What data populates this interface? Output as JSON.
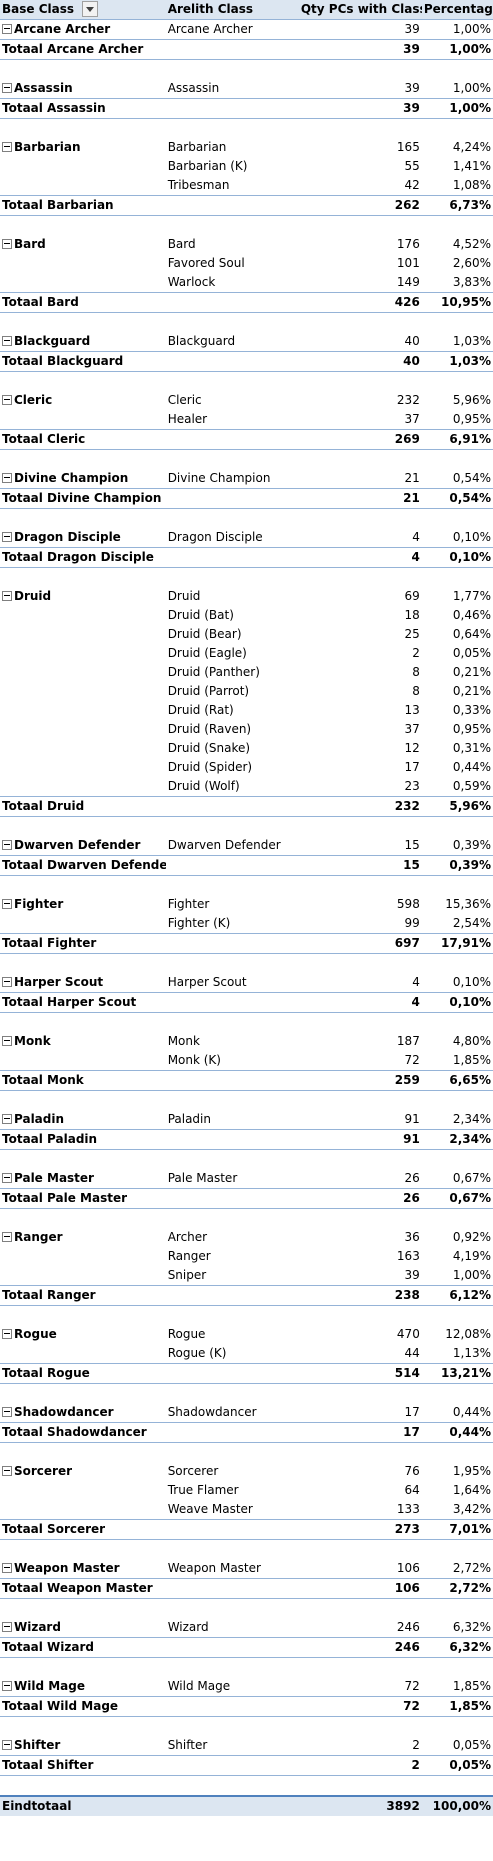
{
  "headers": {
    "base_class": "Base Class",
    "arelith_class": "Arelith Class",
    "qty": "Qty PCs with Class",
    "percentage": "Percentage"
  },
  "groups": [
    {
      "name": "Arcane Archer",
      "total_label": "Totaal Arcane Archer",
      "total_qty": "39",
      "total_pct": "1,00%",
      "rows": [
        {
          "cls": "Arcane Archer",
          "qty": "39",
          "pct": "1,00%"
        }
      ]
    },
    {
      "name": "Assassin",
      "total_label": "Totaal Assassin",
      "total_qty": "39",
      "total_pct": "1,00%",
      "rows": [
        {
          "cls": "Assassin",
          "qty": "39",
          "pct": "1,00%"
        }
      ]
    },
    {
      "name": "Barbarian",
      "total_label": "Totaal Barbarian",
      "total_qty": "262",
      "total_pct": "6,73%",
      "rows": [
        {
          "cls": "Barbarian",
          "qty": "165",
          "pct": "4,24%"
        },
        {
          "cls": "Barbarian (K)",
          "qty": "55",
          "pct": "1,41%"
        },
        {
          "cls": "Tribesman",
          "qty": "42",
          "pct": "1,08%"
        }
      ]
    },
    {
      "name": "Bard",
      "total_label": "Totaal Bard",
      "total_qty": "426",
      "total_pct": "10,95%",
      "rows": [
        {
          "cls": "Bard",
          "qty": "176",
          "pct": "4,52%"
        },
        {
          "cls": "Favored Soul",
          "qty": "101",
          "pct": "2,60%"
        },
        {
          "cls": "Warlock",
          "qty": "149",
          "pct": "3,83%"
        }
      ]
    },
    {
      "name": "Blackguard",
      "total_label": "Totaal Blackguard",
      "total_qty": "40",
      "total_pct": "1,03%",
      "rows": [
        {
          "cls": "Blackguard",
          "qty": "40",
          "pct": "1,03%"
        }
      ]
    },
    {
      "name": "Cleric",
      "total_label": "Totaal Cleric",
      "total_qty": "269",
      "total_pct": "6,91%",
      "rows": [
        {
          "cls": "Cleric",
          "qty": "232",
          "pct": "5,96%"
        },
        {
          "cls": "Healer",
          "qty": "37",
          "pct": "0,95%"
        }
      ]
    },
    {
      "name": "Divine Champion",
      "total_label": "Totaal Divine Champion",
      "total_qty": "21",
      "total_pct": "0,54%",
      "rows": [
        {
          "cls": "Divine Champion",
          "qty": "21",
          "pct": "0,54%"
        }
      ]
    },
    {
      "name": "Dragon Disciple",
      "total_label": "Totaal Dragon Disciple",
      "total_qty": "4",
      "total_pct": "0,10%",
      "rows": [
        {
          "cls": "Dragon Disciple",
          "qty": "4",
          "pct": "0,10%"
        }
      ]
    },
    {
      "name": "Druid",
      "total_label": "Totaal Druid",
      "total_qty": "232",
      "total_pct": "5,96%",
      "rows": [
        {
          "cls": "Druid",
          "qty": "69",
          "pct": "1,77%"
        },
        {
          "cls": "Druid (Bat)",
          "qty": "18",
          "pct": "0,46%"
        },
        {
          "cls": "Druid (Bear)",
          "qty": "25",
          "pct": "0,64%"
        },
        {
          "cls": "Druid (Eagle)",
          "qty": "2",
          "pct": "0,05%"
        },
        {
          "cls": "Druid (Panther)",
          "qty": "8",
          "pct": "0,21%"
        },
        {
          "cls": "Druid (Parrot)",
          "qty": "8",
          "pct": "0,21%"
        },
        {
          "cls": "Druid (Rat)",
          "qty": "13",
          "pct": "0,33%"
        },
        {
          "cls": "Druid (Raven)",
          "qty": "37",
          "pct": "0,95%"
        },
        {
          "cls": "Druid (Snake)",
          "qty": "12",
          "pct": "0,31%"
        },
        {
          "cls": "Druid (Spider)",
          "qty": "17",
          "pct": "0,44%"
        },
        {
          "cls": "Druid (Wolf)",
          "qty": "23",
          "pct": "0,59%"
        }
      ]
    },
    {
      "name": "Dwarven Defender",
      "total_label": "Totaal Dwarven Defender",
      "total_qty": "15",
      "total_pct": "0,39%",
      "rows": [
        {
          "cls": "Dwarven Defender",
          "qty": "15",
          "pct": "0,39%"
        }
      ]
    },
    {
      "name": "Fighter",
      "total_label": "Totaal Fighter",
      "total_qty": "697",
      "total_pct": "17,91%",
      "rows": [
        {
          "cls": "Fighter",
          "qty": "598",
          "pct": "15,36%"
        },
        {
          "cls": "Fighter (K)",
          "qty": "99",
          "pct": "2,54%"
        }
      ]
    },
    {
      "name": "Harper Scout",
      "total_label": "Totaal Harper Scout",
      "total_qty": "4",
      "total_pct": "0,10%",
      "rows": [
        {
          "cls": "Harper Scout",
          "qty": "4",
          "pct": "0,10%"
        }
      ]
    },
    {
      "name": "Monk",
      "total_label": "Totaal Monk",
      "total_qty": "259",
      "total_pct": "6,65%",
      "rows": [
        {
          "cls": "Monk",
          "qty": "187",
          "pct": "4,80%"
        },
        {
          "cls": "Monk (K)",
          "qty": "72",
          "pct": "1,85%"
        }
      ]
    },
    {
      "name": "Paladin",
      "total_label": "Totaal Paladin",
      "total_qty": "91",
      "total_pct": "2,34%",
      "rows": [
        {
          "cls": "Paladin",
          "qty": "91",
          "pct": "2,34%"
        }
      ]
    },
    {
      "name": "Pale Master",
      "total_label": "Totaal Pale Master",
      "total_qty": "26",
      "total_pct": "0,67%",
      "rows": [
        {
          "cls": "Pale Master",
          "qty": "26",
          "pct": "0,67%"
        }
      ]
    },
    {
      "name": "Ranger",
      "total_label": "Totaal Ranger",
      "total_qty": "238",
      "total_pct": "6,12%",
      "rows": [
        {
          "cls": "Archer",
          "qty": "36",
          "pct": "0,92%"
        },
        {
          "cls": "Ranger",
          "qty": "163",
          "pct": "4,19%"
        },
        {
          "cls": "Sniper",
          "qty": "39",
          "pct": "1,00%"
        }
      ]
    },
    {
      "name": "Rogue",
      "total_label": "Totaal Rogue",
      "total_qty": "514",
      "total_pct": "13,21%",
      "rows": [
        {
          "cls": "Rogue",
          "qty": "470",
          "pct": "12,08%"
        },
        {
          "cls": "Rogue (K)",
          "qty": "44",
          "pct": "1,13%"
        }
      ]
    },
    {
      "name": "Shadowdancer",
      "total_label": "Totaal Shadowdancer",
      "total_qty": "17",
      "total_pct": "0,44%",
      "rows": [
        {
          "cls": "Shadowdancer",
          "qty": "17",
          "pct": "0,44%"
        }
      ]
    },
    {
      "name": "Sorcerer",
      "total_label": "Totaal Sorcerer",
      "total_qty": "273",
      "total_pct": "7,01%",
      "rows": [
        {
          "cls": "Sorcerer",
          "qty": "76",
          "pct": "1,95%"
        },
        {
          "cls": "True Flamer",
          "qty": "64",
          "pct": "1,64%"
        },
        {
          "cls": "Weave Master",
          "qty": "133",
          "pct": "3,42%"
        }
      ]
    },
    {
      "name": "Weapon Master",
      "total_label": "Totaal Weapon Master",
      "total_qty": "106",
      "total_pct": "2,72%",
      "rows": [
        {
          "cls": "Weapon Master",
          "qty": "106",
          "pct": "2,72%"
        }
      ]
    },
    {
      "name": "Wizard",
      "total_label": "Totaal Wizard",
      "total_qty": "246",
      "total_pct": "6,32%",
      "rows": [
        {
          "cls": "Wizard",
          "qty": "246",
          "pct": "6,32%"
        }
      ]
    },
    {
      "name": "Wild Mage",
      "total_label": "Totaal Wild Mage",
      "total_qty": "72",
      "total_pct": "1,85%",
      "rows": [
        {
          "cls": "Wild Mage",
          "qty": "72",
          "pct": "1,85%"
        }
      ]
    },
    {
      "name": "Shifter",
      "total_label": "Totaal Shifter",
      "total_qty": "2",
      "total_pct": "0,05%",
      "rows": [
        {
          "cls": "Shifter",
          "qty": "2",
          "pct": "0,05%"
        }
      ]
    }
  ],
  "grand_total": {
    "label": "Eindtotaal",
    "qty": "3892",
    "pct": "100,00%"
  },
  "colors": {
    "header_bg": "#dce6f1",
    "border": "#95b3d7",
    "accent": "#4f81bd"
  }
}
